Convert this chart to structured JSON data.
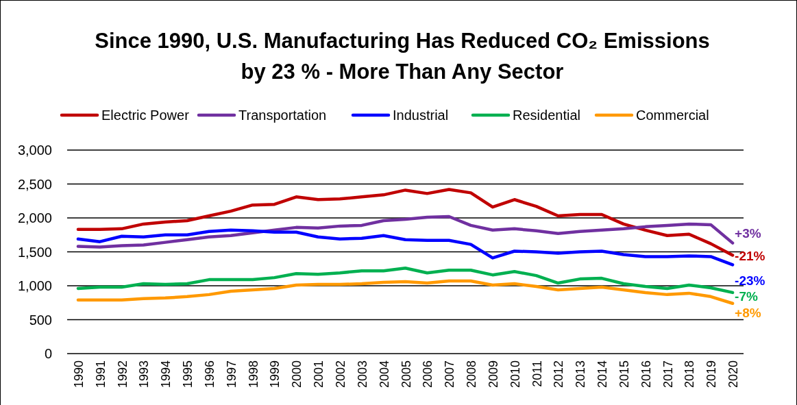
{
  "chart_data": {
    "type": "line",
    "title": "Since 1990, U.S. Manufacturing Has Reduced CO₂ Emissions\nby 23 % - More Than Any Sector",
    "x": [
      1990,
      1991,
      1992,
      1993,
      1994,
      1995,
      1996,
      1997,
      1998,
      1999,
      2000,
      2001,
      2002,
      2003,
      2004,
      2005,
      2006,
      2007,
      2008,
      2009,
      2010,
      2011,
      2012,
      2013,
      2014,
      2015,
      2016,
      2017,
      2018,
      2019,
      2020
    ],
    "xticks": [
      1990,
      1991,
      1992,
      1993,
      1994,
      1995,
      1996,
      1997,
      1998,
      1999,
      2000,
      2001,
      2002,
      2003,
      2004,
      2005,
      2006,
      2007,
      2008,
      2009,
      2010,
      2011,
      2012,
      2013,
      2014,
      2015,
      2016,
      2017,
      2018,
      2019,
      2020
    ],
    "xlim": [
      1989.5,
      2020.5
    ],
    "ylim": [
      0,
      3000
    ],
    "yticks": [
      {
        "value": 0,
        "label": "0"
      },
      {
        "value": 500,
        "label": "500"
      },
      {
        "value": 1000,
        "label": "1,000"
      },
      {
        "value": 1500,
        "label": "1,500"
      },
      {
        "value": 2000,
        "label": "2,000"
      },
      {
        "value": 2500,
        "label": "2,500"
      },
      {
        "value": 3000,
        "label": "3,000"
      }
    ],
    "grid": "y",
    "legend": "top",
    "marker": "none",
    "line_style": "solid",
    "series": [
      {
        "name": "Electric Power",
        "color": "#c00000",
        "values": [
          1830,
          1830,
          1840,
          1910,
          1940,
          1960,
          2030,
          2100,
          2190,
          2200,
          2310,
          2270,
          2280,
          2310,
          2340,
          2410,
          2360,
          2420,
          2370,
          2160,
          2270,
          2170,
          2030,
          2050,
          2050,
          1910,
          1820,
          1740,
          1760,
          1620,
          1450
        ]
      },
      {
        "name": "Transportation",
        "color": "#7030a0",
        "values": [
          1580,
          1570,
          1590,
          1600,
          1640,
          1680,
          1720,
          1740,
          1780,
          1820,
          1860,
          1850,
          1880,
          1890,
          1960,
          1980,
          2010,
          2020,
          1890,
          1820,
          1840,
          1810,
          1770,
          1800,
          1820,
          1840,
          1870,
          1890,
          1910,
          1900,
          1630
        ]
      },
      {
        "name": "Industrial",
        "color": "#0000ff",
        "values": [
          1690,
          1650,
          1730,
          1720,
          1750,
          1750,
          1800,
          1820,
          1810,
          1790,
          1790,
          1720,
          1690,
          1700,
          1740,
          1680,
          1670,
          1670,
          1610,
          1410,
          1510,
          1500,
          1480,
          1500,
          1510,
          1460,
          1430,
          1430,
          1440,
          1430,
          1310
        ]
      },
      {
        "name": "Residential",
        "color": "#00b050",
        "values": [
          960,
          980,
          980,
          1030,
          1020,
          1030,
          1090,
          1090,
          1090,
          1120,
          1180,
          1170,
          1190,
          1220,
          1220,
          1260,
          1190,
          1230,
          1230,
          1160,
          1210,
          1150,
          1040,
          1100,
          1110,
          1030,
          990,
          960,
          1010,
          970,
          900
        ]
      },
      {
        "name": "Commercial",
        "color": "#ff9900",
        "values": [
          790,
          790,
          790,
          810,
          820,
          840,
          870,
          920,
          940,
          960,
          1010,
          1020,
          1020,
          1030,
          1050,
          1060,
          1040,
          1070,
          1070,
          1010,
          1030,
          990,
          940,
          960,
          980,
          940,
          900,
          870,
          890,
          840,
          740
        ]
      }
    ],
    "annotations": [
      "-21%",
      "+3%",
      "-23%",
      "-7%",
      "+8%"
    ]
  }
}
